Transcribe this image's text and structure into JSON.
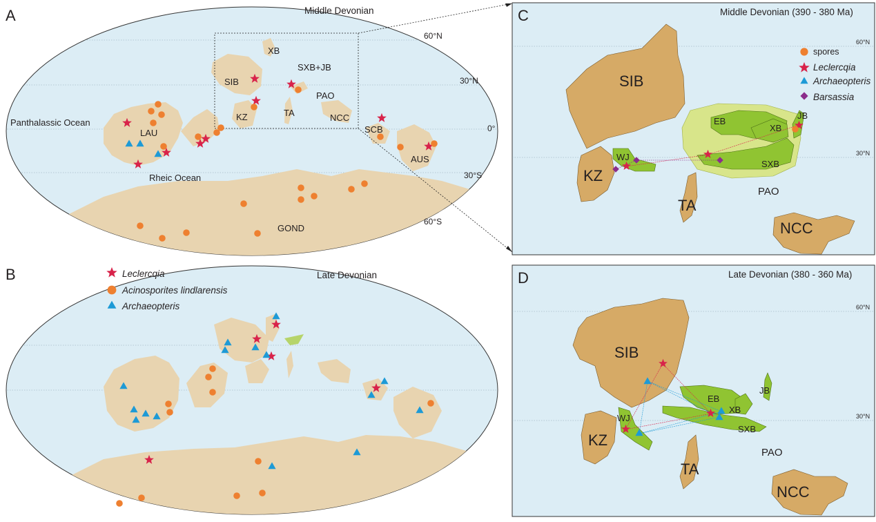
{
  "panels": {
    "A": {
      "letter": "A",
      "title": "Middle Devonian",
      "labels": {
        "xb": "XB",
        "sib": "SIB",
        "sxbjb": "SXB+JB",
        "pao": "PAO",
        "kz": "KZ",
        "ta": "TA",
        "ncc": "NCC",
        "scb": "SCB",
        "lau": "LAU",
        "aus": "AUS",
        "gond": "GOND",
        "panthalassic": "Panthalassic Ocean",
        "rheic": "Rheic Ocean"
      },
      "lat": {
        "n60": "60°N",
        "n30": "30°N",
        "eq": "0°",
        "s30": "30°S",
        "s60": "60°S"
      }
    },
    "B": {
      "letter": "B",
      "title": "Late Devonian"
    },
    "C": {
      "letter": "C",
      "title": "Middle Devonian (390 - 380 Ma)",
      "labels": {
        "sib": "SIB",
        "kz": "KZ",
        "ta": "TA",
        "pao": "PAO",
        "ncc": "NCC",
        "eb": "EB",
        "xb": "XB",
        "jb": "JB",
        "wj": "WJ",
        "sxb": "SXB"
      },
      "lat": {
        "n60": "60°N",
        "n30": "30°N"
      }
    },
    "D": {
      "letter": "D",
      "title": "Late Devonian (380 - 360 Ma)",
      "labels": {
        "sib": "SIB",
        "kz": "KZ",
        "ta": "TA",
        "pao": "PAO",
        "ncc": "NCC",
        "eb": "EB",
        "xb": "XB",
        "jb": "JB",
        "wj": "WJ",
        "sxb": "SXB"
      },
      "lat": {
        "n60": "60°N",
        "n30": "30°N"
      }
    }
  },
  "legend_B": {
    "leclercqia": "Leclercqia",
    "acinosporites": "Acinosporites lindlarensis",
    "archaeopteris": "Archaeopteris"
  },
  "legend_C": {
    "spores": "spores",
    "leclercqia": "Leclercqia",
    "archaeopteris": "Archaeopteris",
    "barsassia": "Barsassia"
  },
  "colors": {
    "ocean": "#dcedf5",
    "land_world": "#e8d4b0",
    "land_block": "#d6aa66",
    "green": "#90c432",
    "green_light": "#d8e58a",
    "star": "#d8234a",
    "spore": "#ee8030",
    "triangle": "#1d9ad6",
    "diamond": "#8b2d8b"
  }
}
